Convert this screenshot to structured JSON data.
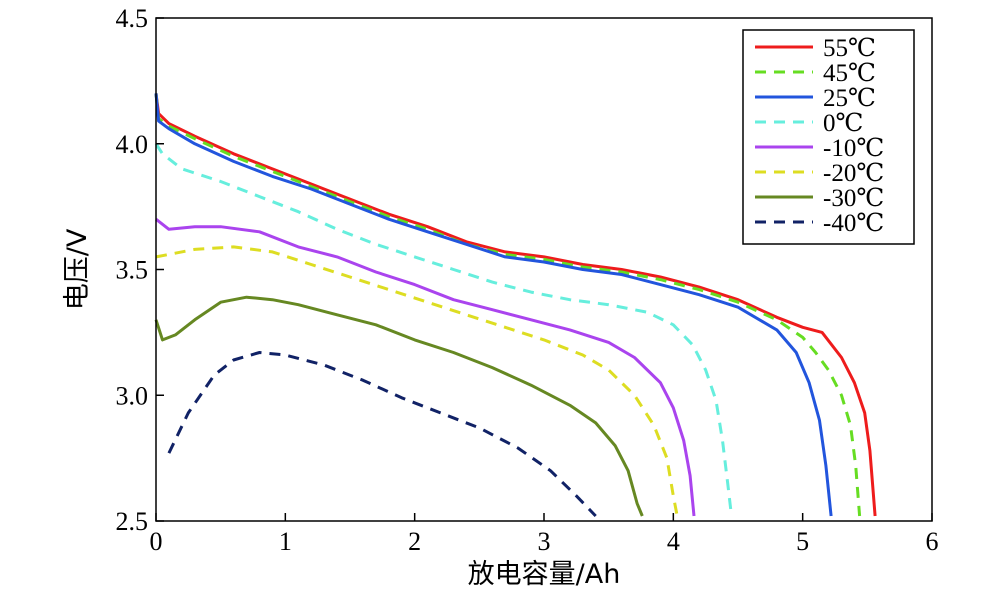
{
  "chart_data": {
    "type": "line",
    "xlabel": "放电容量/Ah",
    "ylabel": "电压/V",
    "xlim": [
      0,
      6
    ],
    "ylim": [
      2.5,
      4.5
    ],
    "x_ticks": [
      "0",
      "1",
      "2",
      "3",
      "4",
      "5",
      "6"
    ],
    "y_ticks": [
      "2.5",
      "3.0",
      "3.5",
      "4.0",
      "4.5"
    ],
    "grid": false,
    "legend_position": "top-right",
    "series": [
      {
        "name": "55℃",
        "color": "#ee1c1c",
        "dash": "solid",
        "points": [
          [
            0,
            4.2
          ],
          [
            0.02,
            4.12
          ],
          [
            0.1,
            4.08
          ],
          [
            0.3,
            4.03
          ],
          [
            0.6,
            3.96
          ],
          [
            0.9,
            3.9
          ],
          [
            1.2,
            3.84
          ],
          [
            1.5,
            3.78
          ],
          [
            1.8,
            3.72
          ],
          [
            2.1,
            3.67
          ],
          [
            2.4,
            3.61
          ],
          [
            2.7,
            3.57
          ],
          [
            3.0,
            3.55
          ],
          [
            3.3,
            3.52
          ],
          [
            3.6,
            3.5
          ],
          [
            3.9,
            3.47
          ],
          [
            4.2,
            3.43
          ],
          [
            4.5,
            3.38
          ],
          [
            4.8,
            3.31
          ],
          [
            5.0,
            3.27
          ],
          [
            5.15,
            3.25
          ],
          [
            5.3,
            3.15
          ],
          [
            5.4,
            3.05
          ],
          [
            5.48,
            2.93
          ],
          [
            5.52,
            2.78
          ],
          [
            5.54,
            2.65
          ],
          [
            5.56,
            2.52
          ]
        ]
      },
      {
        "name": "45℃",
        "color": "#66dd22",
        "dash": "dashed",
        "points": [
          [
            0,
            4.2
          ],
          [
            0.02,
            4.1
          ],
          [
            0.1,
            4.07
          ],
          [
            0.3,
            4.02
          ],
          [
            0.6,
            3.95
          ],
          [
            0.9,
            3.89
          ],
          [
            1.2,
            3.83
          ],
          [
            1.5,
            3.77
          ],
          [
            1.8,
            3.71
          ],
          [
            2.1,
            3.66
          ],
          [
            2.4,
            3.6
          ],
          [
            2.7,
            3.56
          ],
          [
            3.0,
            3.54
          ],
          [
            3.3,
            3.51
          ],
          [
            3.6,
            3.49
          ],
          [
            3.9,
            3.46
          ],
          [
            4.2,
            3.42
          ],
          [
            4.5,
            3.37
          ],
          [
            4.8,
            3.3
          ],
          [
            5.0,
            3.23
          ],
          [
            5.1,
            3.17
          ],
          [
            5.2,
            3.1
          ],
          [
            5.3,
            3.0
          ],
          [
            5.37,
            2.88
          ],
          [
            5.41,
            2.72
          ],
          [
            5.44,
            2.52
          ]
        ]
      },
      {
        "name": "25℃",
        "color": "#2255dd",
        "dash": "solid",
        "points": [
          [
            0,
            4.2
          ],
          [
            0.02,
            4.09
          ],
          [
            0.1,
            4.06
          ],
          [
            0.3,
            4.0
          ],
          [
            0.6,
            3.93
          ],
          [
            0.9,
            3.87
          ],
          [
            1.2,
            3.82
          ],
          [
            1.5,
            3.76
          ],
          [
            1.8,
            3.7
          ],
          [
            2.1,
            3.65
          ],
          [
            2.4,
            3.6
          ],
          [
            2.7,
            3.55
          ],
          [
            3.0,
            3.53
          ],
          [
            3.3,
            3.5
          ],
          [
            3.6,
            3.48
          ],
          [
            3.9,
            3.44
          ],
          [
            4.2,
            3.4
          ],
          [
            4.5,
            3.35
          ],
          [
            4.8,
            3.26
          ],
          [
            4.95,
            3.17
          ],
          [
            5.05,
            3.05
          ],
          [
            5.13,
            2.9
          ],
          [
            5.18,
            2.72
          ],
          [
            5.22,
            2.52
          ]
        ]
      },
      {
        "name": "0℃",
        "color": "#66eedd",
        "dash": "dashed",
        "points": [
          [
            0,
            4.0
          ],
          [
            0.05,
            3.96
          ],
          [
            0.2,
            3.9
          ],
          [
            0.5,
            3.85
          ],
          [
            0.8,
            3.79
          ],
          [
            1.1,
            3.73
          ],
          [
            1.4,
            3.66
          ],
          [
            1.7,
            3.6
          ],
          [
            2.0,
            3.55
          ],
          [
            2.3,
            3.5
          ],
          [
            2.6,
            3.45
          ],
          [
            2.9,
            3.41
          ],
          [
            3.2,
            3.38
          ],
          [
            3.5,
            3.36
          ],
          [
            3.8,
            3.33
          ],
          [
            4.0,
            3.28
          ],
          [
            4.15,
            3.2
          ],
          [
            4.25,
            3.1
          ],
          [
            4.33,
            2.98
          ],
          [
            4.38,
            2.82
          ],
          [
            4.42,
            2.65
          ],
          [
            4.45,
            2.52
          ]
        ]
      },
      {
        "name": "-10℃",
        "color": "#aa44ee",
        "dash": "solid",
        "points": [
          [
            0,
            3.7
          ],
          [
            0.1,
            3.66
          ],
          [
            0.3,
            3.67
          ],
          [
            0.5,
            3.67
          ],
          [
            0.8,
            3.65
          ],
          [
            1.1,
            3.59
          ],
          [
            1.4,
            3.55
          ],
          [
            1.7,
            3.49
          ],
          [
            2.0,
            3.44
          ],
          [
            2.3,
            3.38
          ],
          [
            2.6,
            3.34
          ],
          [
            2.9,
            3.3
          ],
          [
            3.2,
            3.26
          ],
          [
            3.5,
            3.21
          ],
          [
            3.7,
            3.15
          ],
          [
            3.9,
            3.05
          ],
          [
            4.0,
            2.95
          ],
          [
            4.08,
            2.82
          ],
          [
            4.13,
            2.68
          ],
          [
            4.16,
            2.52
          ]
        ]
      },
      {
        "name": "-20℃",
        "color": "#dddd22",
        "dash": "dashed",
        "points": [
          [
            0,
            3.55
          ],
          [
            0.1,
            3.56
          ],
          [
            0.3,
            3.58
          ],
          [
            0.6,
            3.59
          ],
          [
            0.9,
            3.57
          ],
          [
            1.2,
            3.52
          ],
          [
            1.5,
            3.47
          ],
          [
            1.8,
            3.42
          ],
          [
            2.1,
            3.37
          ],
          [
            2.4,
            3.32
          ],
          [
            2.7,
            3.27
          ],
          [
            3.0,
            3.22
          ],
          [
            3.3,
            3.16
          ],
          [
            3.5,
            3.1
          ],
          [
            3.7,
            3.0
          ],
          [
            3.85,
            2.88
          ],
          [
            3.95,
            2.75
          ],
          [
            4.0,
            2.6
          ],
          [
            4.03,
            2.52
          ]
        ]
      },
      {
        "name": "-30℃",
        "color": "#668822",
        "dash": "solid",
        "points": [
          [
            0,
            3.3
          ],
          [
            0.05,
            3.22
          ],
          [
            0.15,
            3.24
          ],
          [
            0.3,
            3.3
          ],
          [
            0.5,
            3.37
          ],
          [
            0.7,
            3.39
          ],
          [
            0.9,
            3.38
          ],
          [
            1.1,
            3.36
          ],
          [
            1.4,
            3.32
          ],
          [
            1.7,
            3.28
          ],
          [
            2.0,
            3.22
          ],
          [
            2.3,
            3.17
          ],
          [
            2.6,
            3.11
          ],
          [
            2.9,
            3.04
          ],
          [
            3.2,
            2.96
          ],
          [
            3.4,
            2.89
          ],
          [
            3.55,
            2.8
          ],
          [
            3.65,
            2.7
          ],
          [
            3.72,
            2.57
          ],
          [
            3.76,
            2.52
          ]
        ]
      },
      {
        "name": "-40℃",
        "color": "#112266",
        "dash": "dashed",
        "points": [
          [
            0.1,
            2.77
          ],
          [
            0.25,
            2.93
          ],
          [
            0.45,
            3.08
          ],
          [
            0.6,
            3.14
          ],
          [
            0.8,
            3.17
          ],
          [
            1.0,
            3.16
          ],
          [
            1.3,
            3.12
          ],
          [
            1.6,
            3.06
          ],
          [
            1.9,
            2.99
          ],
          [
            2.2,
            2.93
          ],
          [
            2.5,
            2.87
          ],
          [
            2.8,
            2.79
          ],
          [
            3.05,
            2.7
          ],
          [
            3.25,
            2.6
          ],
          [
            3.4,
            2.52
          ]
        ]
      }
    ]
  }
}
